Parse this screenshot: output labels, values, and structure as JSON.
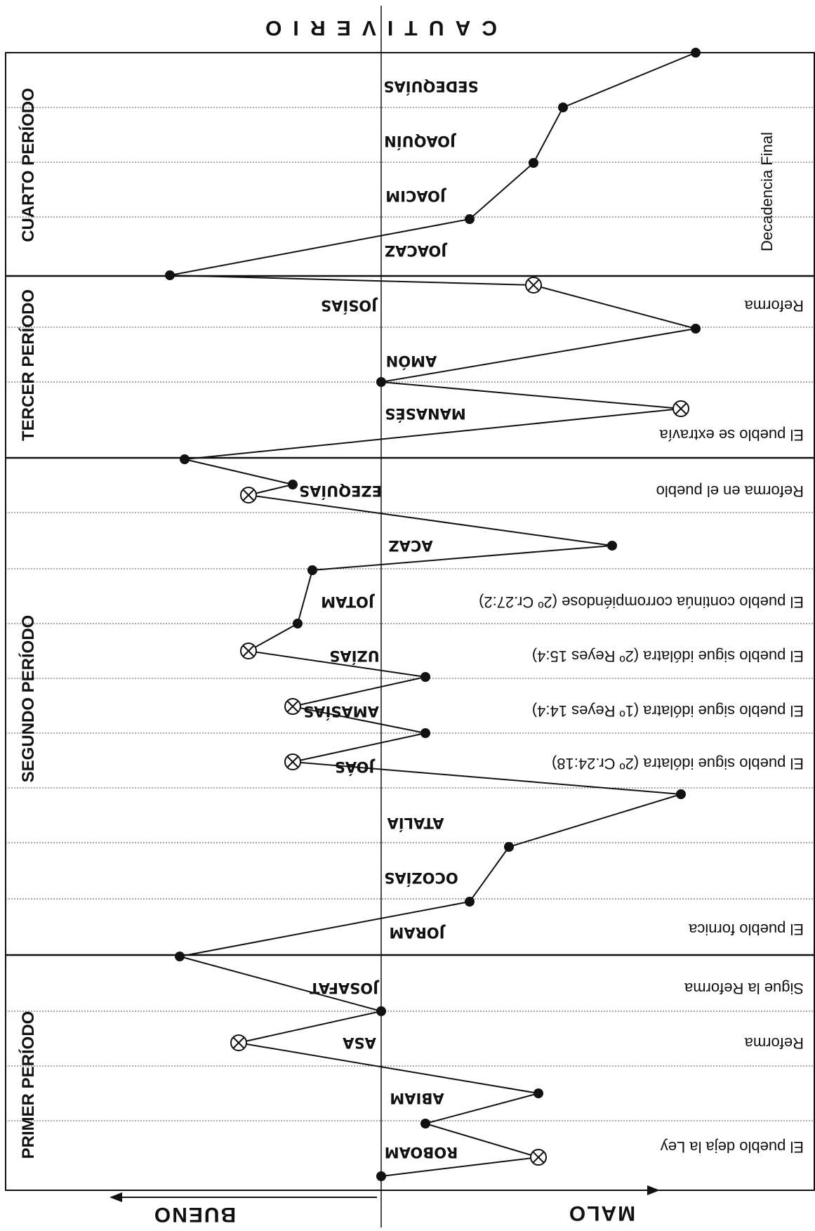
{
  "header": "CAUTIVERIO",
  "axis": {
    "bad_label": "MALO",
    "good_label": "BUENO"
  },
  "periods": [
    "PRIMER PERÍODO",
    "SEGUNDO PERÍODO",
    "TERCER PERÍODO",
    "CUARTO PERÍODO"
  ],
  "kings": [
    "ROBOAM",
    "ABIAM",
    "ASA",
    "JOSAFAT",
    "JORAM",
    "OCOZÍAS",
    "ATALÍA",
    "JOÁS",
    "AMASÍAS",
    "UZÍAS",
    "JOTAM",
    "ACAZ",
    "EZEQUÍAS",
    "MANASÉS",
    "AMÓN",
    "JOSÍAS",
    "JOACAZ",
    "JOACIM",
    "JOAQUÍN",
    "SEDEQUÍAS"
  ],
  "notes": [
    "El pueblo deja la Ley",
    "Reforma",
    "Sigue la Reforma",
    "El pueblo fornica",
    "El pueblo sigue idólatra (2º Cr.24:18)",
    "El pueblo sigue idólatra (1º Reyes 14:4)",
    "El pueblo sigue idólatra (2º Reyes 15:4)",
    "El pueblo continúa corrompiéndose (2º Cr.27:2)",
    "Reforma en el pueblo",
    "El pueblo se extravía",
    "Reforma",
    "Decadencia Final"
  ],
  "chart_data": {
    "type": "line",
    "x_label_bad": "MALO",
    "x_label_good": "BUENO",
    "series": [
      {
        "points": [
          {
            "king": "ROBOAM",
            "moral": 0
          },
          {
            "king": "ROBOAM",
            "moral": 3.2,
            "reform": true
          },
          {
            "king": "ROBOAM",
            "moral": 0.9
          },
          {
            "king": "ABIAM",
            "moral": 3.2
          },
          {
            "king": "ASA",
            "moral": -2.9,
            "reform": true
          },
          {
            "king": "JOSAFAT",
            "moral": 0
          },
          {
            "king": "JORAM",
            "moral": -4.1
          },
          {
            "king": "JORAM",
            "moral": 1.8
          },
          {
            "king": "OCOZÍAS",
            "moral": 2.6
          },
          {
            "king": "ATALÍA",
            "moral": 6.1
          },
          {
            "king": "JOÁS",
            "moral": -1.8,
            "reform": true
          },
          {
            "king": "AMASÍAS",
            "moral": 0.9
          },
          {
            "king": "AMASÍAS",
            "moral": -1.8,
            "reform": true
          },
          {
            "king": "UZÍAS",
            "moral": 0.9
          },
          {
            "king": "UZÍAS",
            "moral": -2.7,
            "reform": true
          },
          {
            "king": "JOTAM",
            "moral": -1.7
          },
          {
            "king": "ACAZ",
            "moral": -1.4
          },
          {
            "king": "ACAZ",
            "moral": 4.7
          },
          {
            "king": "EZEQUÍAS",
            "moral": -2.7,
            "reform": true
          },
          {
            "king": "EZEQUÍAS",
            "moral": -1.8
          },
          {
            "king": "MANASÉS",
            "moral": -4.0
          },
          {
            "king": "MANASÉS",
            "moral": 6.1,
            "reform": true
          },
          {
            "king": "AMÓN",
            "moral": 0
          },
          {
            "king": "JOSÍAS",
            "moral": 6.4
          },
          {
            "king": "JOSÍAS",
            "moral": 3.1,
            "reform": true
          },
          {
            "king": "JOACAZ",
            "moral": -4.3
          },
          {
            "king": "JOACAZ",
            "moral": 1.8
          },
          {
            "king": "JOACIM",
            "moral": 3.1
          },
          {
            "king": "JOAQUÍN",
            "moral": 3.7
          },
          {
            "king": "SEDEQUÍAS",
            "moral": 6.4
          }
        ]
      }
    ]
  }
}
